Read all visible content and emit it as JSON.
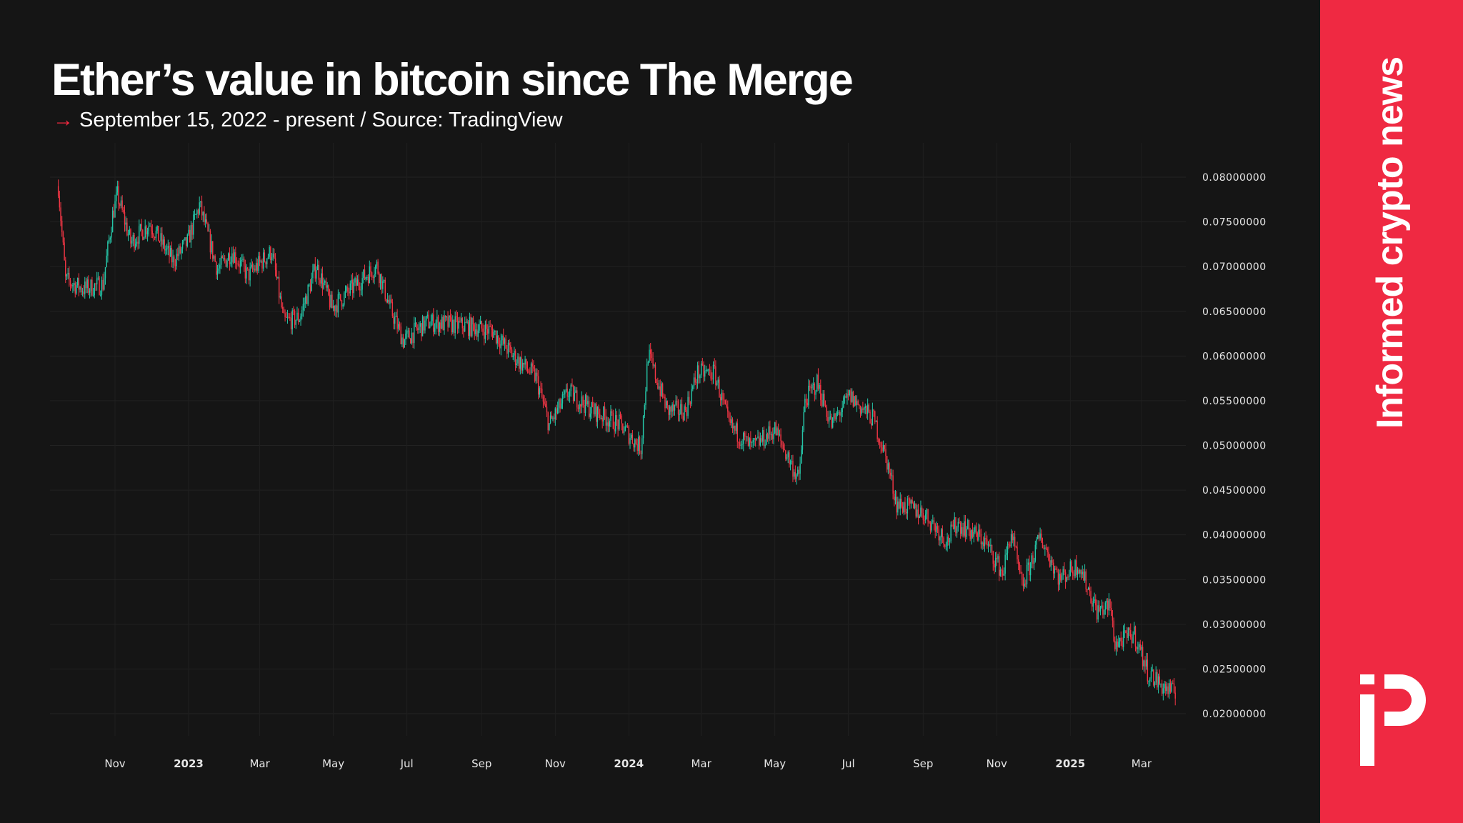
{
  "header": {
    "title": "Ether’s value in bitcoin since The Merge",
    "subtitle_arrow": "→",
    "subtitle": "September 15, 2022 - present / Source: TradingView"
  },
  "brand": {
    "tagline": "Informed crypto news",
    "logo_text": "iP",
    "panel_color": "#ef2942"
  },
  "chart_data": {
    "type": "candlestick",
    "title": "Ether’s value in bitcoin since The Merge",
    "xlabel": "",
    "ylabel": "",
    "ylim": [
      0.0175,
      0.0825
    ],
    "xlim": [
      "2022-09-15",
      "2025-03-29"
    ],
    "grid": true,
    "up_color": "#26c6a8",
    "down_color": "#f23645",
    "y_ticks": [
      "0.08000000",
      "0.07500000",
      "0.07000000",
      "0.06500000",
      "0.06000000",
      "0.05500000",
      "0.05000000",
      "0.04500000",
      "0.04000000",
      "0.03500000",
      "0.03000000",
      "0.02500000",
      "0.02000000"
    ],
    "x_ticks": [
      {
        "label": "Nov",
        "date": "2022-11-01",
        "year": false
      },
      {
        "label": "2023",
        "date": "2023-01-01",
        "year": true
      },
      {
        "label": "Mar",
        "date": "2023-03-01",
        "year": false
      },
      {
        "label": "May",
        "date": "2023-05-01",
        "year": false
      },
      {
        "label": "Jul",
        "date": "2023-07-01",
        "year": false
      },
      {
        "label": "Sep",
        "date": "2023-09-01",
        "year": false
      },
      {
        "label": "Nov",
        "date": "2023-11-01",
        "year": false
      },
      {
        "label": "2024",
        "date": "2024-01-01",
        "year": true
      },
      {
        "label": "Mar",
        "date": "2024-03-01",
        "year": false
      },
      {
        "label": "May",
        "date": "2024-05-01",
        "year": false
      },
      {
        "label": "Jul",
        "date": "2024-07-01",
        "year": false
      },
      {
        "label": "Sep",
        "date": "2024-09-01",
        "year": false
      },
      {
        "label": "Nov",
        "date": "2024-11-01",
        "year": false
      },
      {
        "label": "2025",
        "date": "2025-01-01",
        "year": true
      },
      {
        "label": "Mar",
        "date": "2025-03-01",
        "year": false
      }
    ],
    "approx_closes": [
      [
        "2022-09-15",
        0.079
      ],
      [
        "2022-09-21",
        0.0685
      ],
      [
        "2022-10-06",
        0.0675
      ],
      [
        "2022-10-22",
        0.068
      ],
      [
        "2022-10-30",
        0.0758
      ],
      [
        "2022-11-03",
        0.078
      ],
      [
        "2022-11-14",
        0.0727
      ],
      [
        "2022-11-30",
        0.0748
      ],
      [
        "2022-12-19",
        0.0706
      ],
      [
        "2022-12-31",
        0.0727
      ],
      [
        "2023-01-10",
        0.0769
      ],
      [
        "2023-01-25",
        0.0696
      ],
      [
        "2023-02-06",
        0.0717
      ],
      [
        "2023-02-19",
        0.069
      ],
      [
        "2023-03-11",
        0.0717
      ],
      [
        "2023-03-21",
        0.0638
      ],
      [
        "2023-04-03",
        0.0643
      ],
      [
        "2023-04-17",
        0.0701
      ],
      [
        "2023-04-30",
        0.0654
      ],
      [
        "2023-05-20",
        0.068
      ],
      [
        "2023-06-06",
        0.0701
      ],
      [
        "2023-06-17",
        0.0654
      ],
      [
        "2023-06-28",
        0.0617
      ],
      [
        "2023-07-18",
        0.0638
      ],
      [
        "2023-08-22",
        0.0633
      ],
      [
        "2023-09-10",
        0.0628
      ],
      [
        "2023-09-26",
        0.0602
      ],
      [
        "2023-10-16",
        0.0576
      ],
      [
        "2023-10-27",
        0.0523
      ],
      [
        "2023-11-12",
        0.056
      ],
      [
        "2023-12-02",
        0.0539
      ],
      [
        "2023-12-25",
        0.0523
      ],
      [
        "2024-01-11",
        0.0497
      ],
      [
        "2024-01-17",
        0.0602
      ],
      [
        "2024-02-02",
        0.0539
      ],
      [
        "2024-02-17",
        0.0539
      ],
      [
        "2024-02-27",
        0.0581
      ],
      [
        "2024-03-12",
        0.0581
      ],
      [
        "2024-03-24",
        0.0523
      ],
      [
        "2024-04-12",
        0.0497
      ],
      [
        "2024-05-01",
        0.0518
      ],
      [
        "2024-05-21",
        0.0461
      ],
      [
        "2024-05-26",
        0.055
      ],
      [
        "2024-06-05",
        0.057
      ],
      [
        "2024-06-17",
        0.0523
      ],
      [
        "2024-07-02",
        0.0555
      ],
      [
        "2024-07-22",
        0.0529
      ],
      [
        "2024-08-02",
        0.0482
      ],
      [
        "2024-08-10",
        0.0435
      ],
      [
        "2024-09-02",
        0.0424
      ],
      [
        "2024-09-21",
        0.0393
      ],
      [
        "2024-09-29",
        0.0414
      ],
      [
        "2024-10-22",
        0.0393
      ],
      [
        "2024-11-06",
        0.0357
      ],
      [
        "2024-11-13",
        0.0403
      ],
      [
        "2024-11-22",
        0.0341
      ],
      [
        "2024-12-07",
        0.0398
      ],
      [
        "2024-12-23",
        0.0351
      ],
      [
        "2025-01-08",
        0.0367
      ],
      [
        "2025-01-23",
        0.0315
      ],
      [
        "2025-02-03",
        0.032
      ],
      [
        "2025-02-07",
        0.0278
      ],
      [
        "2025-02-23",
        0.0289
      ],
      [
        "2025-03-06",
        0.0247
      ],
      [
        "2025-03-18",
        0.0231
      ],
      [
        "2025-03-29",
        0.0222
      ]
    ]
  }
}
